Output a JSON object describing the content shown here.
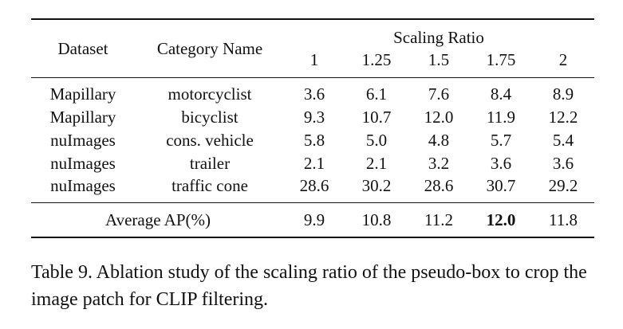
{
  "table": {
    "headers": {
      "dataset": "Dataset",
      "category": "Category Name",
      "group": "Scaling Ratio",
      "ratios": [
        "1",
        "1.25",
        "1.5",
        "1.75",
        "2"
      ]
    },
    "rows": [
      {
        "dataset": "Mapillary",
        "category": "motorcyclist",
        "values": [
          "3.6",
          "6.1",
          "7.6",
          "8.4",
          "8.9"
        ]
      },
      {
        "dataset": "Mapillary",
        "category": "bicyclist",
        "values": [
          "9.3",
          "10.7",
          "12.0",
          "11.9",
          "12.2"
        ]
      },
      {
        "dataset": "nuImages",
        "category": "cons. vehicle",
        "values": [
          "5.8",
          "5.0",
          "4.8",
          "5.7",
          "5.4"
        ]
      },
      {
        "dataset": "nuImages",
        "category": "trailer",
        "values": [
          "2.1",
          "2.1",
          "3.2",
          "3.6",
          "3.6"
        ]
      },
      {
        "dataset": "nuImages",
        "category": "traffic cone",
        "values": [
          "28.6",
          "30.2",
          "28.6",
          "30.7",
          "29.2"
        ]
      }
    ],
    "average": {
      "label": "Average AP(%)",
      "values": [
        "9.9",
        "10.8",
        "11.2",
        "12.0",
        "11.8"
      ],
      "best_index": 3
    }
  },
  "caption": "Table 9. Ablation study of the scaling ratio of the pseudo-box to crop the image patch for CLIP filtering."
}
